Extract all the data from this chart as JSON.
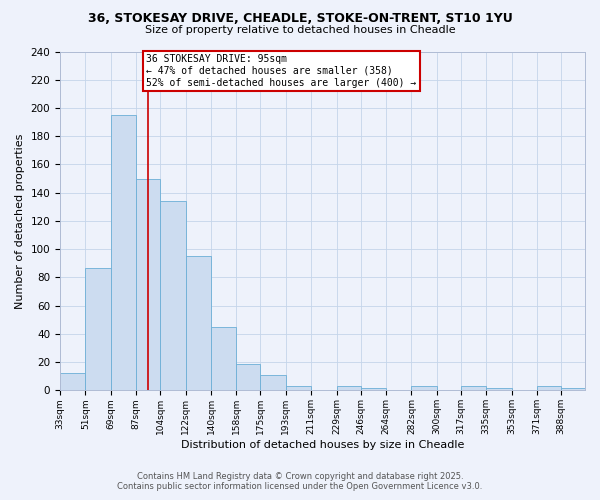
{
  "title_line1": "36, STOKESAY DRIVE, CHEADLE, STOKE-ON-TRENT, ST10 1YU",
  "title_line2": "Size of property relative to detached houses in Cheadle",
  "xlabel": "Distribution of detached houses by size in Cheadle",
  "ylabel": "Number of detached properties",
  "footer_line1": "Contains HM Land Registry data © Crown copyright and database right 2025.",
  "footer_line2": "Contains public sector information licensed under the Open Government Licence v3.0.",
  "annotation_line1": "36 STOKESAY DRIVE: 95sqm",
  "annotation_line2": "← 47% of detached houses are smaller (358)",
  "annotation_line3": "52% of semi-detached houses are larger (400) →",
  "categories": [
    "33sqm",
    "51sqm",
    "69sqm",
    "87sqm",
    "104sqm",
    "122sqm",
    "140sqm",
    "158sqm",
    "175sqm",
    "193sqm",
    "211sqm",
    "229sqm",
    "246sqm",
    "264sqm",
    "282sqm",
    "300sqm",
    "317sqm",
    "335sqm",
    "353sqm",
    "371sqm",
    "388sqm"
  ],
  "bin_edges": [
    33,
    51,
    69,
    87,
    104,
    122,
    140,
    158,
    175,
    193,
    211,
    229,
    246,
    264,
    282,
    300,
    317,
    335,
    353,
    371,
    388,
    405
  ],
  "values": [
    12,
    87,
    195,
    150,
    134,
    95,
    45,
    19,
    11,
    3,
    0,
    3,
    2,
    0,
    3,
    0,
    3,
    2,
    0,
    3,
    2
  ],
  "bar_color": "#ccdcf0",
  "bar_edge_color": "#6baed6",
  "vline_color": "#cc0000",
  "vline_x": 95,
  "background_color": "#eef2fb",
  "ylim": [
    0,
    240
  ],
  "yticks": [
    0,
    20,
    40,
    60,
    80,
    100,
    120,
    140,
    160,
    180,
    200,
    220,
    240
  ],
  "annotation_box_color": "#ffffff",
  "annotation_box_edge": "#cc0000",
  "grid_color": "#c5d5ea"
}
